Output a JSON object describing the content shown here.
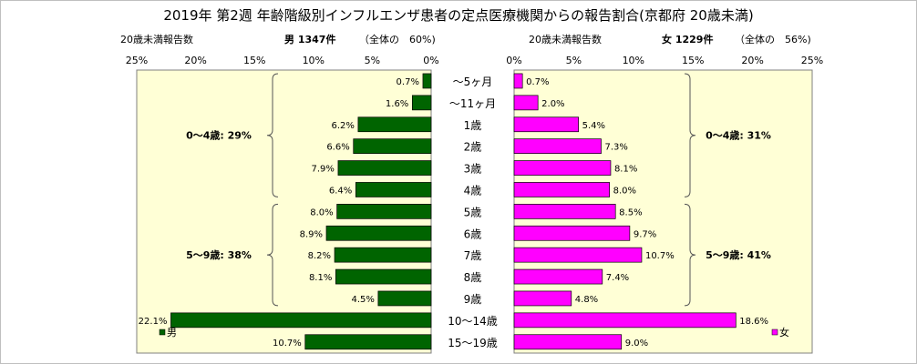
{
  "chart_data": {
    "type": "bar",
    "title": "2019年 第2週 年齢階級別インフルエンザ患者の定点医療機関からの報告割合(京都府 20歳未満)",
    "categories": [
      "～5ヶ月",
      "～11ヶ月",
      "1歳",
      "2歳",
      "3歳",
      "4歳",
      "5歳",
      "6歳",
      "7歳",
      "8歳",
      "9歳",
      "10～14歳",
      "15～19歳"
    ],
    "series": [
      {
        "name": "男",
        "color": "#006400",
        "values": [
          0.7,
          1.6,
          6.2,
          6.6,
          7.9,
          6.4,
          8.0,
          8.9,
          8.2,
          8.1,
          4.5,
          22.1,
          10.7
        ],
        "labels": [
          "0.7%",
          "1.6%",
          "6.2%",
          "6.6%",
          "7.9%",
          "6.4%",
          "8.0%",
          "8.9%",
          "8.2%",
          "8.1%",
          "4.5%",
          "22.1%",
          "10.7%"
        ],
        "header_left": "20歳未満報告数",
        "header_count": "男 1347件",
        "header_share": "（全体の　60%)",
        "ticks": [
          "25%",
          "20%",
          "15%",
          "10%",
          "5%",
          "0%"
        ],
        "tick_values": [
          25,
          20,
          15,
          10,
          5,
          0
        ],
        "groups": [
          {
            "label": "0～4歳: 29%",
            "from": 0,
            "to": 5
          },
          {
            "label": "5～9歳: 38%",
            "from": 6,
            "to": 10
          }
        ]
      },
      {
        "name": "女",
        "color": "#ff00ff",
        "values": [
          0.7,
          2.0,
          5.4,
          7.3,
          8.1,
          8.0,
          8.5,
          9.7,
          10.7,
          7.4,
          4.8,
          18.6,
          9.0
        ],
        "labels": [
          "0.7%",
          "2.0%",
          "5.4%",
          "7.3%",
          "8.1%",
          "8.0%",
          "8.5%",
          "9.7%",
          "10.7%",
          "7.4%",
          "4.8%",
          "18.6%",
          "9.0%"
        ],
        "header_left": "20歳未満報告数",
        "header_count": "女 1229件",
        "header_share": "（全体の　56%)",
        "ticks": [
          "0%",
          "5%",
          "10%",
          "15%",
          "20%",
          "25%"
        ],
        "tick_values": [
          0,
          5,
          10,
          15,
          20,
          25
        ],
        "groups": [
          {
            "label": "0～4歳: 31%",
            "from": 0,
            "to": 5
          },
          {
            "label": "5～9歳: 41%",
            "from": 6,
            "to": 10
          }
        ]
      }
    ],
    "xlim": [
      0,
      25
    ],
    "background": "#ffffd6"
  }
}
